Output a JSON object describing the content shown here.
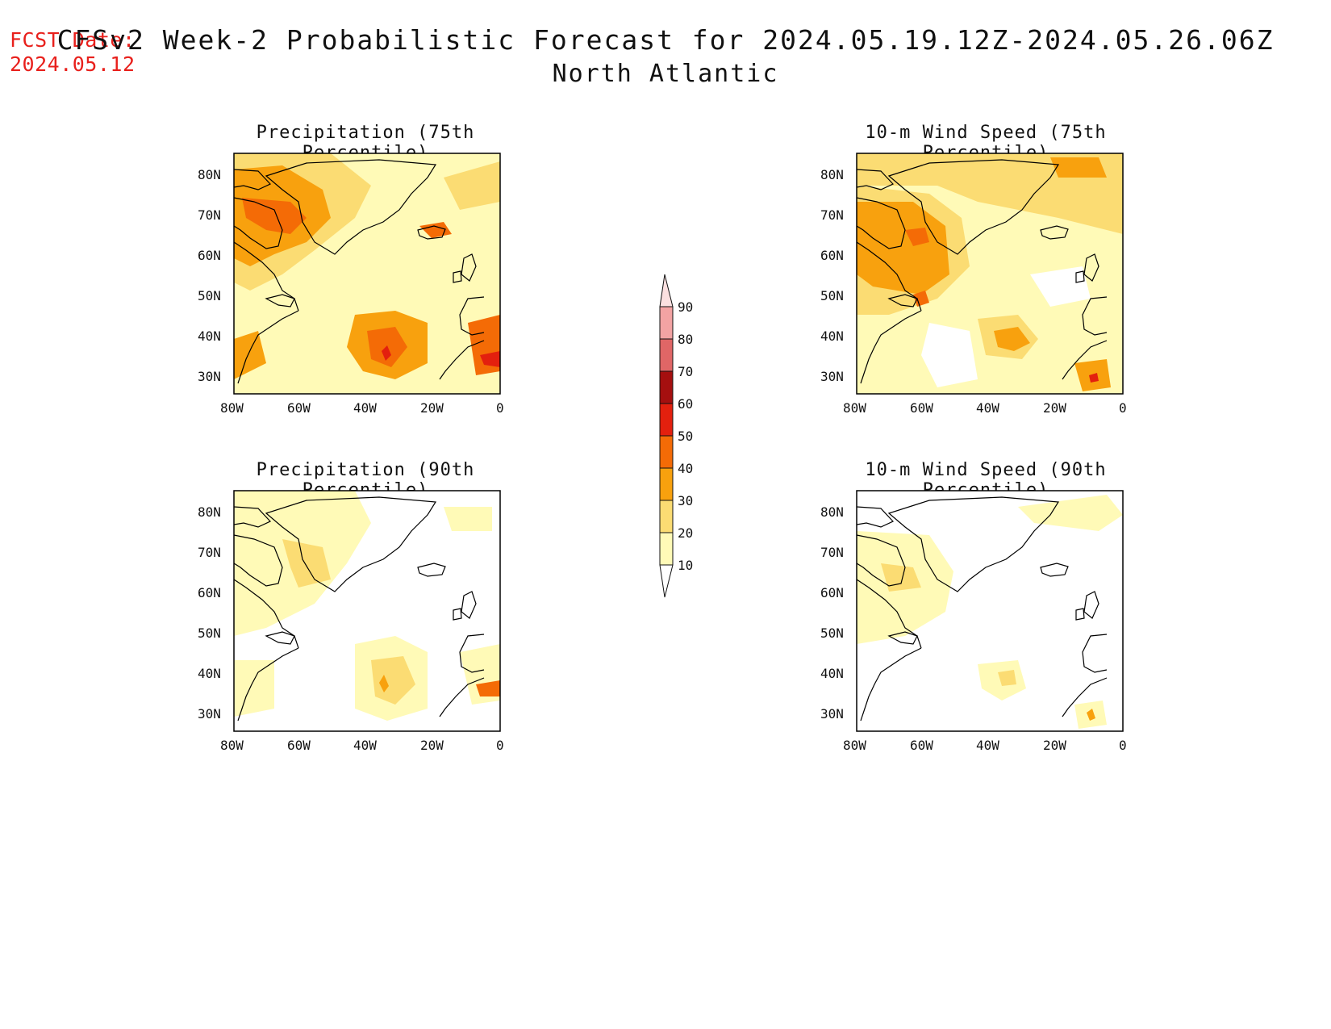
{
  "header": {
    "fcst_label": "FCST Date:",
    "fcst_date": "2024.05.12",
    "title": "CFSv2 Week-2 Probabilistic Forecast for 2024.05.19.12Z-2024.05.26.06Z",
    "subtitle": "North Atlantic"
  },
  "panels": [
    {
      "title": "Precipitation (75th Percentile)"
    },
    {
      "title": "10-m Wind Speed (75th Percentile)"
    },
    {
      "title": "Precipitation (90th Percentile)"
    },
    {
      "title": "10-m Wind Speed (90th Percentile)"
    }
  ],
  "axes": {
    "lat_labels": [
      "80N",
      "70N",
      "60N",
      "50N",
      "40N",
      "30N"
    ],
    "lon_labels": [
      "80W",
      "60W",
      "40W",
      "20W",
      "0"
    ]
  },
  "legend": {
    "labels": [
      "90",
      "80",
      "70",
      "60",
      "50",
      "40",
      "30",
      "20",
      "10"
    ],
    "colors": [
      "#fbe0e0",
      "#f3a3a3",
      "#e06666",
      "#a50f0f",
      "#e3200e",
      "#f46b06",
      "#f8a10e",
      "#fbdc73",
      "#fffab7"
    ]
  },
  "colors": {
    "title_text": "#111111",
    "fcst_text": "#e8201c",
    "coast": "#000000"
  }
}
